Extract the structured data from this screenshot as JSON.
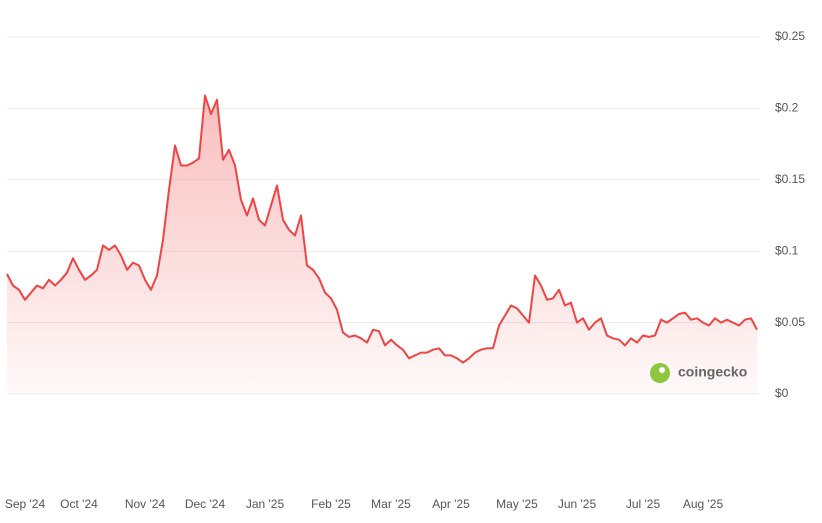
{
  "chart_data": {
    "type": "area",
    "categories": [
      null,
      null,
      null,
      "Sep '24",
      null,
      null,
      null,
      null,
      null,
      null,
      null,
      null,
      "Oct '24",
      null,
      null,
      null,
      null,
      null,
      null,
      null,
      null,
      null,
      null,
      "Nov '24",
      null,
      null,
      null,
      null,
      null,
      null,
      null,
      null,
      null,
      "Dec '24",
      null,
      null,
      null,
      null,
      null,
      null,
      null,
      null,
      null,
      "Jan '25",
      null,
      null,
      null,
      null,
      null,
      null,
      null,
      null,
      null,
      null,
      "Feb '25",
      null,
      null,
      null,
      null,
      null,
      null,
      null,
      null,
      null,
      "Mar '25",
      null,
      null,
      null,
      null,
      null,
      null,
      null,
      null,
      null,
      "Apr '25",
      null,
      null,
      null,
      null,
      null,
      null,
      null,
      null,
      null,
      null,
      "May '25",
      null,
      null,
      null,
      null,
      null,
      null,
      null,
      null,
      null,
      "Jun '25",
      null,
      null,
      null,
      null,
      null,
      null,
      null,
      null,
      null,
      null,
      "Jul '25",
      null,
      null,
      null,
      null,
      null,
      null,
      null,
      null,
      null,
      "Aug '25",
      null,
      null,
      null,
      null,
      null,
      null,
      null,
      null,
      null
    ],
    "values": [
      0.084,
      0.076,
      0.073,
      0.066,
      0.071,
      0.076,
      0.074,
      0.08,
      0.076,
      0.08,
      0.085,
      0.095,
      0.087,
      0.08,
      0.083,
      0.087,
      0.104,
      0.101,
      0.104,
      0.097,
      0.087,
      0.092,
      0.09,
      0.08,
      0.073,
      0.083,
      0.108,
      0.143,
      0.174,
      0.16,
      0.16,
      0.162,
      0.165,
      0.209,
      0.196,
      0.206,
      0.164,
      0.171,
      0.16,
      0.136,
      0.125,
      0.137,
      0.122,
      0.118,
      0.132,
      0.146,
      0.122,
      0.115,
      0.111,
      0.125,
      0.09,
      0.087,
      0.081,
      0.071,
      0.067,
      0.059,
      0.043,
      0.04,
      0.041,
      0.039,
      0.036,
      0.045,
      0.044,
      0.034,
      0.038,
      0.034,
      0.031,
      0.025,
      0.027,
      0.029,
      0.029,
      0.031,
      0.032,
      0.027,
      0.027,
      0.025,
      0.022,
      0.025,
      0.029,
      0.031,
      0.032,
      0.032,
      0.048,
      0.055,
      0.062,
      0.06,
      0.055,
      0.05,
      0.083,
      0.076,
      0.066,
      0.067,
      0.073,
      0.062,
      0.064,
      0.05,
      0.053,
      0.045,
      0.05,
      0.053,
      0.041,
      0.039,
      0.038,
      0.034,
      0.039,
      0.036,
      0.041,
      0.04,
      0.041,
      0.052,
      0.05,
      0.053,
      0.056,
      0.057,
      0.052,
      0.053,
      0.05,
      0.048,
      0.053,
      0.05,
      0.052,
      0.05,
      0.048,
      0.052,
      0.053,
      0.045
    ],
    "color": "#ef4444",
    "ylim": [
      0,
      0.25
    ],
    "yticks": [
      {
        "value": 0,
        "label": "$0"
      },
      {
        "value": 0.05,
        "label": "$0.05"
      },
      {
        "value": 0.1,
        "label": "$0.1"
      },
      {
        "value": 0.15,
        "label": "$0.15"
      },
      {
        "value": 0.2,
        "label": "$0.2"
      },
      {
        "value": 0.25,
        "label": "$0.25"
      }
    ],
    "grid": true,
    "watermark": "coingecko"
  }
}
